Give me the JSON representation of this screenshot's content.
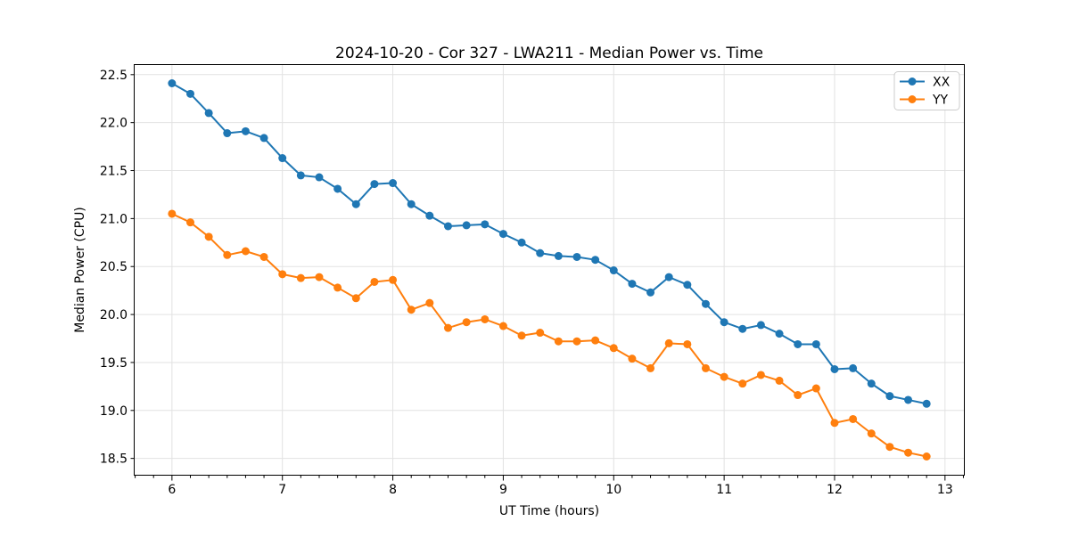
{
  "chart_data": {
    "type": "line",
    "title": "2024-10-20 - Cor 327 - LWA211 - Median Power vs. Time",
    "xlabel": "UT Time (hours)",
    "ylabel": "Median Power (CPU)",
    "xlim": [
      5.658,
      13.175
    ],
    "ylim": [
      18.325,
      22.605
    ],
    "xticks": [
      6,
      7,
      8,
      9,
      10,
      11,
      12,
      13
    ],
    "xticklabels": [
      "6",
      "7",
      "8",
      "9",
      "10",
      "11",
      "12",
      "13"
    ],
    "yticks": [
      18.5,
      19.0,
      19.5,
      20.0,
      20.5,
      21.0,
      21.5,
      22.0,
      22.5
    ],
    "yticklabels": [
      "18.5",
      "19.0",
      "19.5",
      "20.0",
      "20.5",
      "21.0",
      "21.5",
      "22.0",
      "22.5"
    ],
    "x_minor_tick_interval": 0.166667,
    "grid": true,
    "grid_color": "#e2e2e2",
    "legend_position": "upper right",
    "marker": "o",
    "x": [
      6.0,
      6.1667,
      6.3333,
      6.5,
      6.6667,
      6.8333,
      7.0,
      7.1667,
      7.3333,
      7.5,
      7.6667,
      7.8333,
      8.0,
      8.1667,
      8.3333,
      8.5,
      8.6667,
      8.8333,
      9.0,
      9.1667,
      9.3333,
      9.5,
      9.6667,
      9.8333,
      10.0,
      10.1667,
      10.3333,
      10.5,
      10.6667,
      10.8333,
      11.0,
      11.1667,
      11.3333,
      11.5,
      11.6667,
      11.8333,
      12.0,
      12.1667,
      12.3333,
      12.5,
      12.6667,
      12.8333
    ],
    "series": [
      {
        "name": "XX",
        "color": "#1f77b4",
        "values": [
          22.41,
          22.3,
          22.1,
          21.89,
          21.91,
          21.84,
          21.63,
          21.45,
          21.43,
          21.31,
          21.15,
          21.36,
          21.37,
          21.15,
          21.03,
          20.92,
          20.93,
          20.94,
          20.84,
          20.75,
          20.64,
          20.61,
          20.6,
          20.57,
          20.46,
          20.32,
          20.23,
          20.39,
          20.31,
          20.11,
          19.92,
          19.85,
          19.89,
          19.8,
          19.69,
          19.69,
          19.43,
          19.44,
          19.28,
          19.15,
          19.11,
          19.07
        ]
      },
      {
        "name": "YY",
        "color": "#ff7f0e",
        "values": [
          21.05,
          20.96,
          20.81,
          20.62,
          20.66,
          20.6,
          20.42,
          20.38,
          20.39,
          20.28,
          20.17,
          20.34,
          20.36,
          20.05,
          20.12,
          19.86,
          19.92,
          19.95,
          19.88,
          19.78,
          19.81,
          19.72,
          19.72,
          19.73,
          19.65,
          19.54,
          19.44,
          19.7,
          19.69,
          19.44,
          19.35,
          19.28,
          19.37,
          19.31,
          19.16,
          19.23,
          18.87,
          18.91,
          18.76,
          18.62,
          18.56,
          18.52
        ]
      }
    ]
  }
}
